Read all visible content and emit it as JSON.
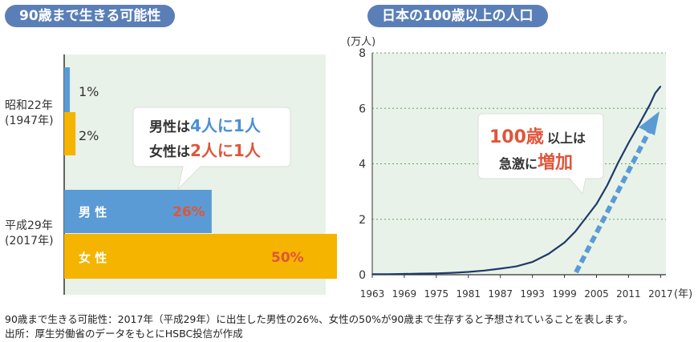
{
  "left": {
    "title": "90歳まで生きる可能性",
    "rows": [
      {
        "label": "昭和22年",
        "sublabel": "(1947年)"
      },
      {
        "label": "平成29年",
        "sublabel": "(2017年)"
      }
    ],
    "bubble": {
      "line1": {
        "prefix": "男性は",
        "value": "4人に1人"
      },
      "line2": {
        "prefix": "女性は",
        "value": "2人に1人"
      }
    }
  },
  "right": {
    "title": "日本の100歳以上の人口",
    "bubble": {
      "line1_big": "100歳",
      "line1_rest": "以上は",
      "line2_prefix": "急激に",
      "line2_big": "増加"
    }
  },
  "footnotes": {
    "note1": "90歳まで生きる可能性：2017年（平成29年）に出生した男性の26%、女性の50%が90歳まで生存すると予想されていることを表します。",
    "note2": "出所：厚生労働省のデータをもとにHSBC投信が作成"
  },
  "colors": {
    "title_pill": "#5a7fb8",
    "panel_bg": "#e8f2e8",
    "male": "#5b9bd5",
    "female": "#f5b400",
    "accent_red": "#e0553a",
    "accent_blue": "#4a8fd6",
    "line": "#1e3a6a",
    "arrow": "#5b9bd5"
  },
  "chart_data": [
    {
      "type": "bar",
      "orientation": "horizontal",
      "title": "90歳まで生きる可能性",
      "categories": [
        "昭和22年 (1947年)",
        "平成29年 (2017年)"
      ],
      "series": [
        {
          "name": "男性",
          "values": [
            1,
            26
          ],
          "labels": [
            "1%",
            "26%"
          ]
        },
        {
          "name": "女性",
          "values": [
            2,
            50
          ],
          "labels": [
            "2%",
            "50%"
          ]
        }
      ],
      "series_labels_on_bars": [
        "男 性",
        "女 性"
      ],
      "xlim": [
        0,
        70
      ],
      "grid": false
    },
    {
      "type": "line",
      "title": "日本の100歳以上の人口",
      "ylabel": "(万人)",
      "xlabel": "(年)",
      "x_ticks": [
        "1963",
        "1969",
        "1975",
        "1981",
        "1987",
        "1993",
        "1999",
        "2005",
        "2011",
        "2017"
      ],
      "y_ticks": [
        "0",
        "2",
        "4",
        "6",
        "8"
      ],
      "xlim": [
        1963,
        2018
      ],
      "ylim": [
        0,
        8
      ],
      "grid": true,
      "x": [
        1963,
        1966,
        1969,
        1972,
        1975,
        1978,
        1981,
        1984,
        1987,
        1990,
        1993,
        1996,
        1999,
        2001,
        2003,
        2005,
        2007,
        2009,
        2011,
        2013,
        2015,
        2016,
        2017
      ],
      "y": [
        0.02,
        0.02,
        0.03,
        0.04,
        0.05,
        0.07,
        0.1,
        0.15,
        0.22,
        0.3,
        0.46,
        0.75,
        1.16,
        1.55,
        2.05,
        2.55,
        3.22,
        4.02,
        4.75,
        5.43,
        6.13,
        6.55,
        6.79
      ]
    }
  ]
}
